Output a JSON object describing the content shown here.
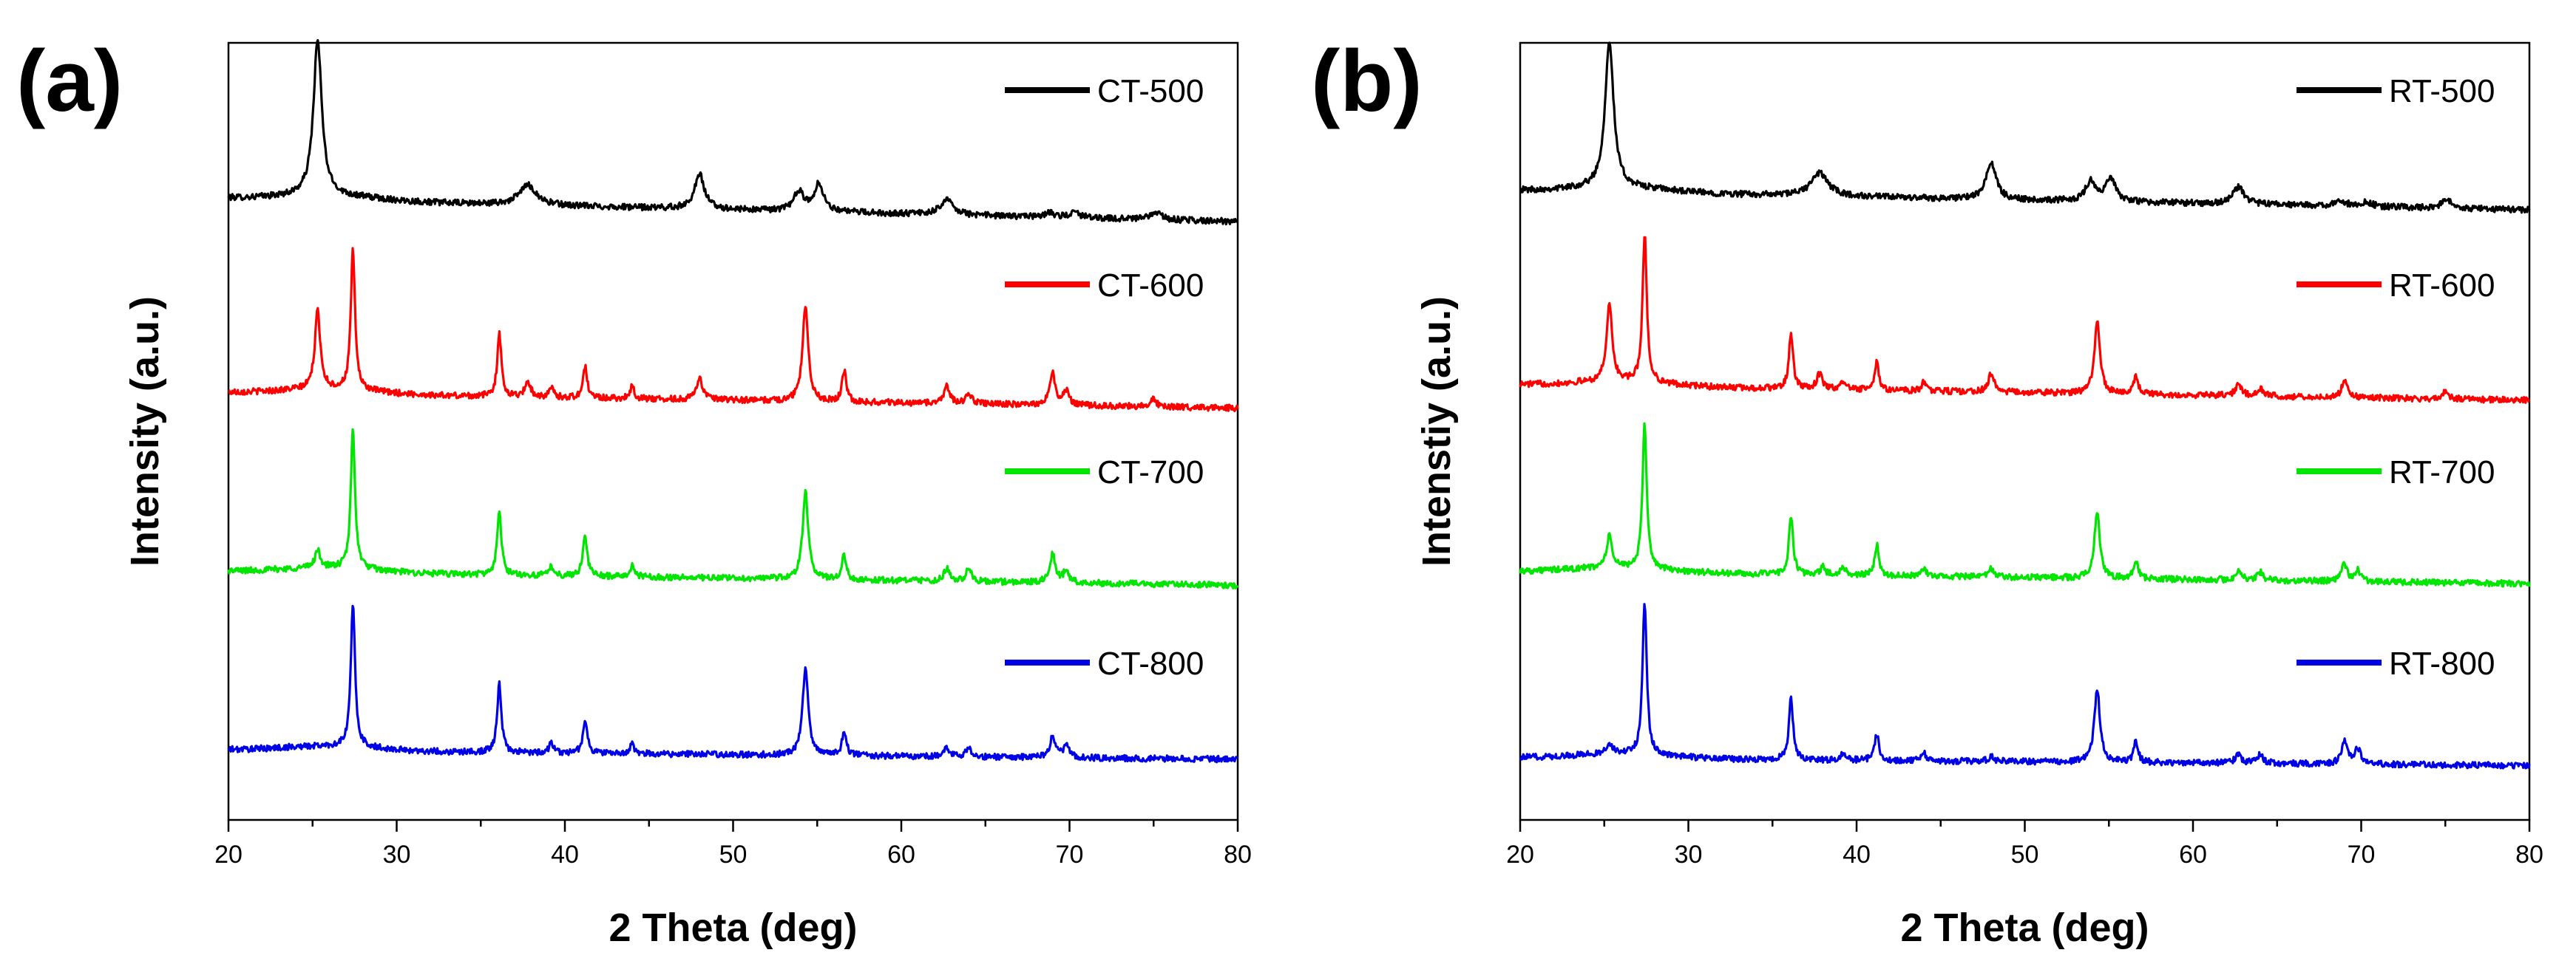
{
  "colors": {
    "500": "#000000",
    "600": "#ff0000",
    "700": "#00e600",
    "800": "#0000e6"
  },
  "chart_data": [
    {
      "type": "line",
      "panel_label": "(a)",
      "xlabel": "2 Theta (deg)",
      "ylabel": "Intensity (a.u.)",
      "xlim": [
        20,
        80
      ],
      "x_ticks": [
        "20",
        "30",
        "40",
        "50",
        "60",
        "70",
        "80"
      ],
      "series": [
        {
          "name": "CT-500",
          "baseline": 0.8,
          "slope": -0.03,
          "peaks": [
            [
              25.3,
              0.2,
              0.3
            ],
            [
              37.8,
              0.026,
              0.6
            ],
            [
              48.0,
              0.045,
              0.35
            ],
            [
              53.9,
              0.025,
              0.35
            ],
            [
              55.1,
              0.035,
              0.35
            ],
            [
              62.7,
              0.022,
              0.4
            ],
            [
              68.8,
              0.005,
              0.4
            ],
            [
              70.3,
              0.006,
              0.4
            ],
            [
              75.1,
              0.009,
              0.4
            ]
          ]
        },
        {
          "name": "CT-600",
          "baseline": 0.55,
          "slope": -0.02,
          "peaks": [
            [
              25.3,
              0.1,
              0.2
            ],
            [
              27.4,
              0.18,
              0.15
            ],
            [
              36.1,
              0.08,
              0.15
            ],
            [
              37.8,
              0.02,
              0.2
            ],
            [
              39.2,
              0.012,
              0.15
            ],
            [
              41.2,
              0.04,
              0.15
            ],
            [
              44.0,
              0.016,
              0.15
            ],
            [
              48.0,
              0.03,
              0.2
            ],
            [
              54.3,
              0.125,
              0.2
            ],
            [
              56.6,
              0.04,
              0.15
            ],
            [
              62.7,
              0.022,
              0.2
            ],
            [
              64.0,
              0.014,
              0.2
            ],
            [
              69.0,
              0.04,
              0.2
            ],
            [
              69.8,
              0.018,
              0.2
            ],
            [
              75.0,
              0.01,
              0.2
            ]
          ]
        },
        {
          "name": "CT-700",
          "baseline": 0.32,
          "slope": -0.018,
          "peaks": [
            [
              25.3,
              0.022,
              0.2
            ],
            [
              27.4,
              0.18,
              0.15
            ],
            [
              36.1,
              0.082,
              0.15
            ],
            [
              39.2,
              0.012,
              0.15
            ],
            [
              41.2,
              0.055,
              0.15
            ],
            [
              44.0,
              0.015,
              0.15
            ],
            [
              54.3,
              0.112,
              0.2
            ],
            [
              56.6,
              0.032,
              0.15
            ],
            [
              62.7,
              0.016,
              0.2
            ],
            [
              64.0,
              0.016,
              0.2
            ],
            [
              69.0,
              0.036,
              0.2
            ],
            [
              69.8,
              0.015,
              0.2
            ]
          ]
        },
        {
          "name": "CT-800",
          "baseline": 0.09,
          "slope": -0.012,
          "peaks": [
            [
              27.4,
              0.185,
              0.15
            ],
            [
              36.1,
              0.088,
              0.15
            ],
            [
              39.2,
              0.014,
              0.15
            ],
            [
              41.2,
              0.044,
              0.15
            ],
            [
              44.0,
              0.012,
              0.15
            ],
            [
              54.3,
              0.112,
              0.2
            ],
            [
              56.6,
              0.032,
              0.15
            ],
            [
              62.7,
              0.012,
              0.2
            ],
            [
              64.0,
              0.01,
              0.2
            ],
            [
              69.0,
              0.028,
              0.2
            ],
            [
              69.8,
              0.015,
              0.2
            ]
          ]
        }
      ]
    },
    {
      "type": "line",
      "panel_label": "(b)",
      "xlabel": "2 Theta (deg)",
      "ylabel": "Intenstiy (a.u.)",
      "xlim": [
        20,
        80
      ],
      "x_ticks": [
        "20",
        "30",
        "40",
        "50",
        "60",
        "70",
        "80"
      ],
      "series": [
        {
          "name": "RT-500",
          "baseline": 0.81,
          "slope": -0.025,
          "peaks": [
            [
              25.3,
              0.19,
              0.3
            ],
            [
              37.8,
              0.03,
              0.6
            ],
            [
              48.0,
              0.048,
              0.35
            ],
            [
              53.9,
              0.025,
              0.35
            ],
            [
              55.1,
              0.03,
              0.35
            ],
            [
              62.7,
              0.022,
              0.4
            ],
            [
              68.8,
              0.006,
              0.4
            ],
            [
              70.3,
              0.006,
              0.4
            ],
            [
              75.1,
              0.01,
              0.4
            ]
          ]
        },
        {
          "name": "RT-600",
          "baseline": 0.56,
          "slope": -0.02,
          "peaks": [
            [
              25.3,
              0.1,
              0.2
            ],
            [
              27.4,
              0.19,
              0.15
            ],
            [
              36.1,
              0.07,
              0.15
            ],
            [
              37.8,
              0.02,
              0.2
            ],
            [
              39.2,
              0.012,
              0.15
            ],
            [
              41.2,
              0.035,
              0.15
            ],
            [
              44.0,
              0.012,
              0.15
            ],
            [
              48.0,
              0.024,
              0.2
            ],
            [
              54.3,
              0.092,
              0.2
            ],
            [
              56.6,
              0.025,
              0.15
            ],
            [
              62.7,
              0.016,
              0.2
            ],
            [
              64.0,
              0.01,
              0.2
            ],
            [
              69.0,
              0.022,
              0.2
            ],
            [
              75.0,
              0.01,
              0.2
            ]
          ]
        },
        {
          "name": "RT-700",
          "baseline": 0.32,
          "slope": -0.016,
          "peaks": [
            [
              25.3,
              0.04,
              0.2
            ],
            [
              27.4,
              0.185,
              0.15
            ],
            [
              36.1,
              0.075,
              0.15
            ],
            [
              38.0,
              0.012,
              0.15
            ],
            [
              39.2,
              0.012,
              0.15
            ],
            [
              41.2,
              0.04,
              0.15
            ],
            [
              44.0,
              0.01,
              0.15
            ],
            [
              48.0,
              0.01,
              0.2
            ],
            [
              54.3,
              0.085,
              0.2
            ],
            [
              56.6,
              0.025,
              0.15
            ],
            [
              62.7,
              0.012,
              0.2
            ],
            [
              64.0,
              0.01,
              0.2
            ],
            [
              69.0,
              0.022,
              0.2
            ],
            [
              69.8,
              0.014,
              0.2
            ]
          ]
        },
        {
          "name": "RT-800",
          "baseline": 0.08,
          "slope": -0.01,
          "peaks": [
            [
              25.3,
              0.014,
              0.2
            ],
            [
              27.4,
              0.195,
              0.15
            ],
            [
              36.1,
              0.08,
              0.15
            ],
            [
              39.2,
              0.01,
              0.15
            ],
            [
              41.2,
              0.035,
              0.15
            ],
            [
              44.0,
              0.01,
              0.15
            ],
            [
              48.0,
              0.006,
              0.2
            ],
            [
              54.3,
              0.095,
              0.2
            ],
            [
              56.6,
              0.028,
              0.15
            ],
            [
              62.7,
              0.012,
              0.2
            ],
            [
              64.0,
              0.012,
              0.2
            ],
            [
              69.0,
              0.03,
              0.2
            ],
            [
              69.8,
              0.02,
              0.2
            ]
          ]
        }
      ]
    }
  ]
}
